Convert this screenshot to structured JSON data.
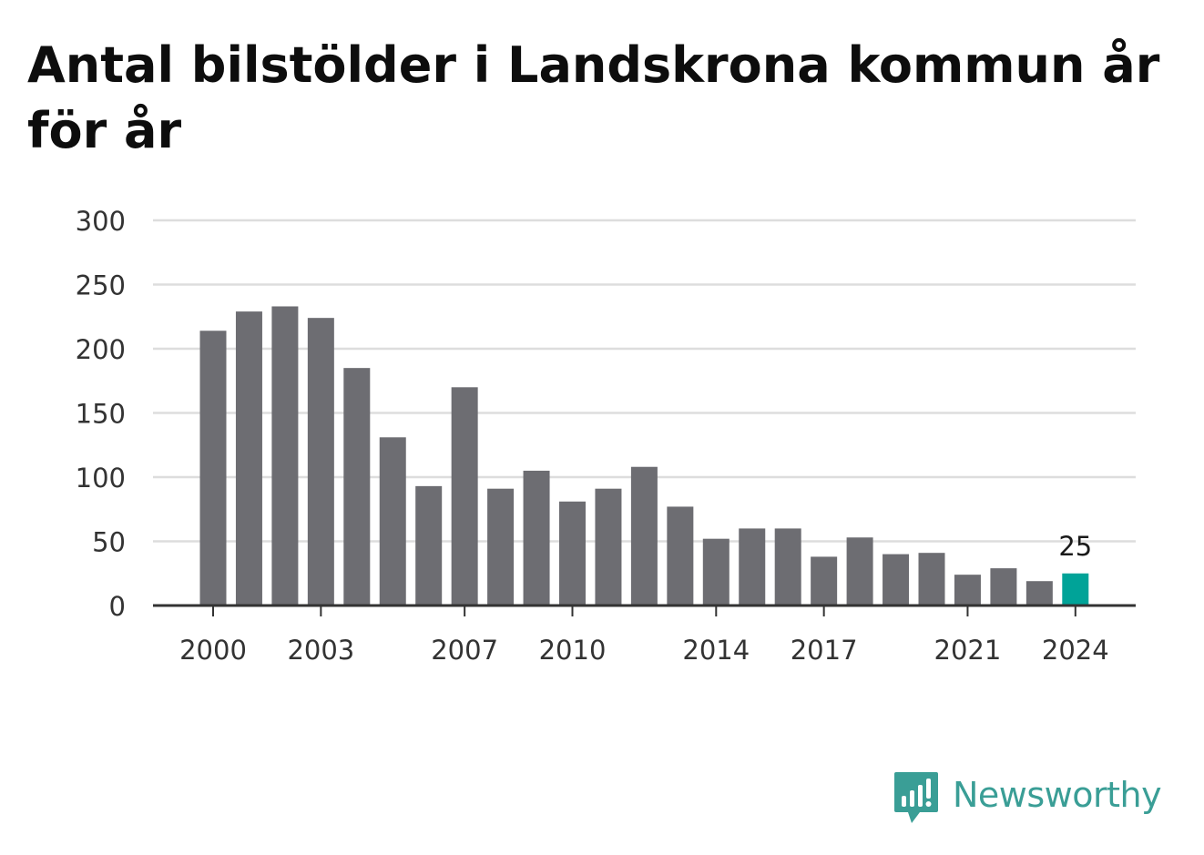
{
  "title": "Antal bilstölder i Landskrona kommun år för år",
  "brand": {
    "name": "Newsworthy",
    "icon": "bar-chart-speech-bubble-icon",
    "color": "#3a9e96"
  },
  "colors": {
    "bar": "#6d6d72",
    "highlight": "#00a398",
    "grid": "#dddddd",
    "axis": "#333333"
  },
  "chart_data": {
    "type": "bar",
    "title": "Antal bilstölder i Landskrona kommun år för år",
    "xlabel": "",
    "ylabel": "",
    "categories": [
      "2000",
      "2001",
      "2002",
      "2003",
      "2004",
      "2005",
      "2006",
      "2007",
      "2008",
      "2009",
      "2010",
      "2011",
      "2012",
      "2013",
      "2014",
      "2015",
      "2016",
      "2017",
      "2018",
      "2019",
      "2020",
      "2021",
      "2022",
      "2023",
      "2024"
    ],
    "values": [
      214,
      229,
      233,
      224,
      185,
      131,
      93,
      170,
      91,
      105,
      81,
      91,
      108,
      77,
      52,
      60,
      60,
      38,
      53,
      40,
      41,
      24,
      29,
      19,
      25
    ],
    "ylim": [
      0,
      300
    ],
    "yticks": [
      "0",
      "50",
      "100",
      "150",
      "200",
      "250",
      "300"
    ],
    "xticks_shown": [
      "2000",
      "2003",
      "2007",
      "2010",
      "2014",
      "2017",
      "2021",
      "2024"
    ],
    "highlight": {
      "category": "2024",
      "label": "25"
    },
    "grid": true,
    "legend": "none"
  }
}
